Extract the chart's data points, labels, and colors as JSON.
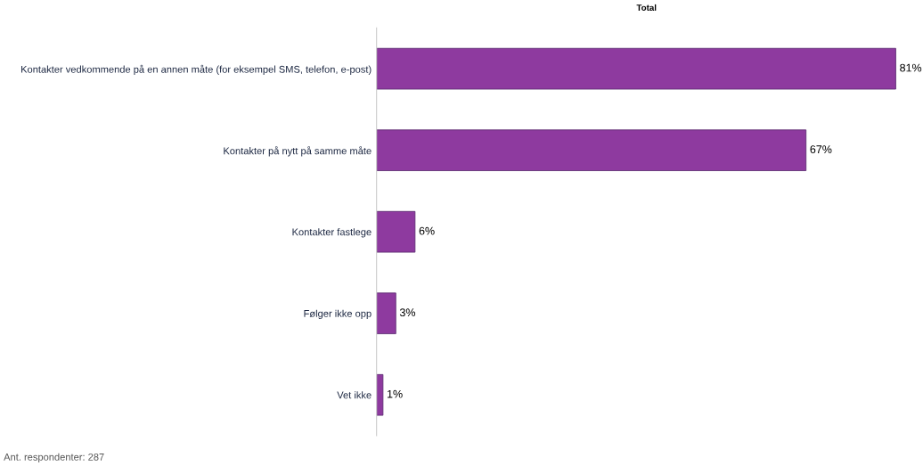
{
  "chart_data": {
    "type": "bar",
    "orientation": "horizontal",
    "title": "Total",
    "categories": [
      "Kontakter vedkommende på en annen måte (for eksempel SMS, telefon, e-post)",
      "Kontakter på nytt på samme måte",
      "Kontakter fastlege",
      "Følger ikke opp",
      "Vet ikke"
    ],
    "values": [
      81,
      67,
      6,
      3,
      1
    ],
    "value_labels": [
      "81%",
      "67%",
      "6%",
      "3%",
      "1%"
    ],
    "color": "#8e3a9f",
    "annotations": [
      "Ant. respondenter: 287"
    ]
  }
}
